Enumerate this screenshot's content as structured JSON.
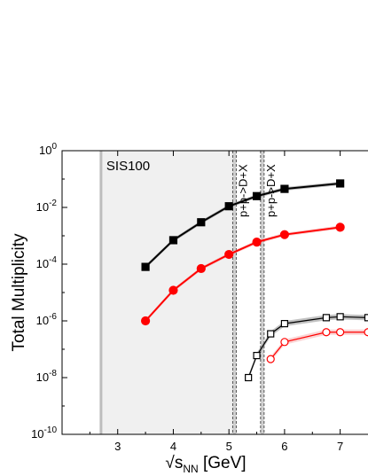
{
  "chart_data": {
    "type": "line",
    "title": "",
    "xlabel": "√s_NN [GeV]",
    "xlabel_main": "√s",
    "xlabel_sub": "NN",
    "xlabel_unit": " [GeV]",
    "ylabel": "Total Multiplicity",
    "xlim": [
      2.0,
      7.5
    ],
    "ylim_log10": [
      -10,
      0
    ],
    "yscale": "log",
    "grid": false,
    "x_ticks": [
      3,
      4,
      5,
      6,
      7
    ],
    "x_tick_labels": [
      "3",
      "4",
      "5",
      "6",
      "7"
    ],
    "y_ticks_exp": [
      -10,
      -8,
      -6,
      -4,
      -2,
      0
    ],
    "y_tick_labels": [
      {
        "base": "10",
        "exp": "-10"
      },
      {
        "base": "10",
        "exp": "-8"
      },
      {
        "base": "10",
        "exp": "-6"
      },
      {
        "base": "10",
        "exp": "-4"
      },
      {
        "base": "10",
        "exp": "-2"
      },
      {
        "base": "10",
        "exp": "0"
      }
    ],
    "shaded_region": {
      "label": "SIS100",
      "x_start": 2.7,
      "x_end": 5.1,
      "color": "#f0f0f0"
    },
    "thresholds": [
      {
        "x": 5.1,
        "label": "p+p->D+X"
      },
      {
        "x": 5.6,
        "label": "p+p->D+X"
      }
    ],
    "series": [
      {
        "marker": "filled-square",
        "color": "#000000",
        "x": [
          3.5,
          4.0,
          4.5,
          5.0,
          5.5,
          6.0,
          7.0
        ],
        "y": [
          8e-05,
          0.0007,
          0.003,
          0.011,
          0.025,
          0.045,
          0.07
        ]
      },
      {
        "marker": "filled-circle",
        "color": "#ff0000",
        "x": [
          3.5,
          4.0,
          4.5,
          5.0,
          5.5,
          6.0,
          7.0
        ],
        "y": [
          1e-06,
          1.2e-05,
          7e-05,
          0.00022,
          0.0006,
          0.0011,
          0.002
        ]
      },
      {
        "marker": "open-square",
        "color": "#000000",
        "x": [
          5.35,
          5.5,
          5.75,
          6.0,
          6.75,
          7.0,
          7.5
        ],
        "y": [
          1e-08,
          6e-08,
          3.5e-07,
          8e-07,
          1.3e-06,
          1.4e-06,
          1.3e-06
        ]
      },
      {
        "marker": "open-circle",
        "color": "#ff0000",
        "x": [
          5.75,
          6.0,
          6.75,
          7.0,
          7.5
        ],
        "y": [
          4.5e-08,
          1.8e-07,
          4e-07,
          4e-07,
          4e-07
        ]
      }
    ]
  }
}
